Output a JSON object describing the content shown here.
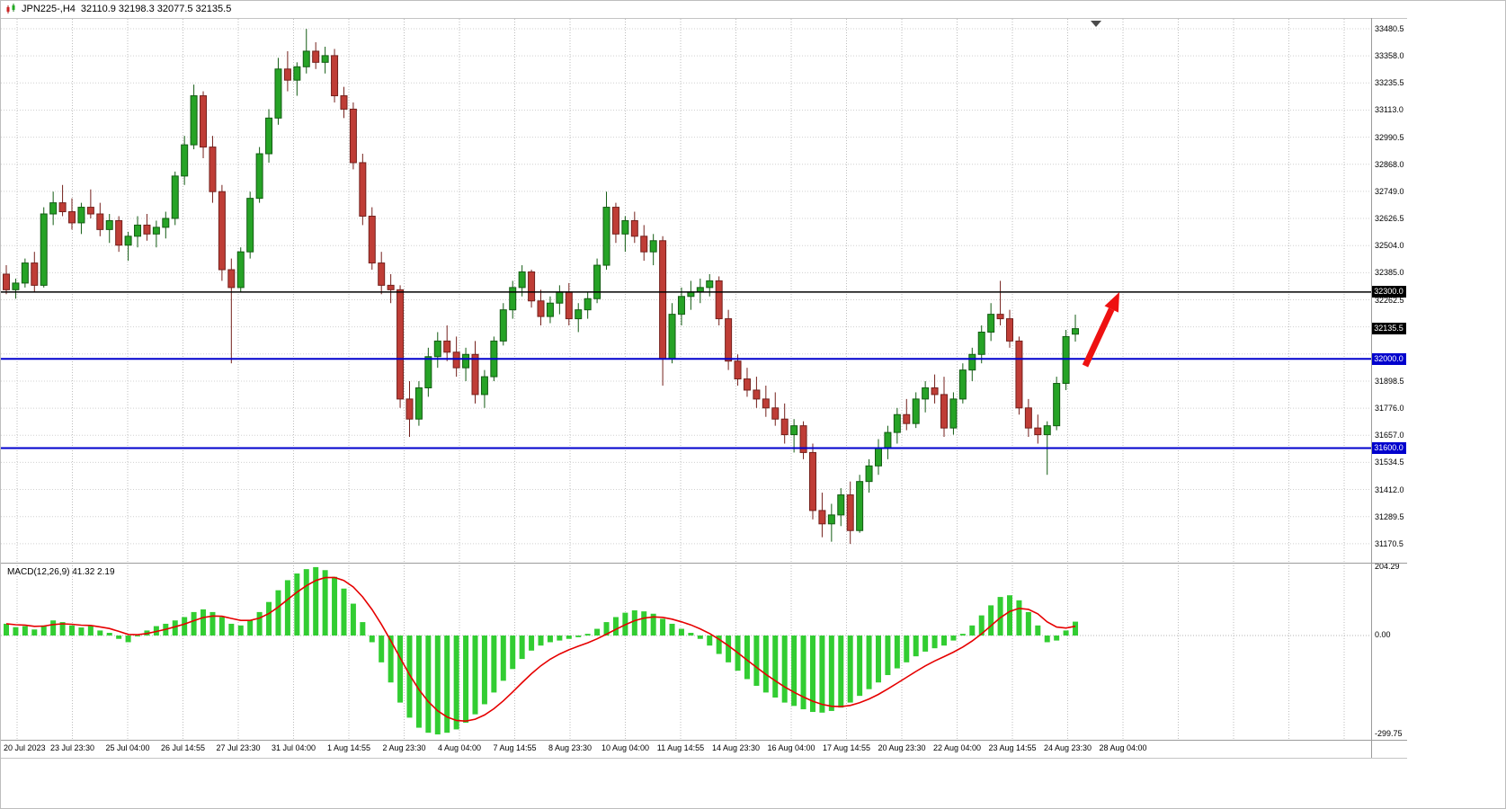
{
  "title_overlay": {
    "symbol": "JPN225-,H4",
    "ohlc": "32110.9 32198.3 32077.5 32135.5"
  },
  "price_axis_labels": [
    "33480.5",
    "33358.0",
    "33235.5",
    "33113.0",
    "32990.5",
    "32868.0",
    "32749.0",
    "32626.5",
    "32504.0",
    "32385.0",
    "32262.5",
    "32140.0",
    "32017.5",
    "31898.5",
    "31776.0",
    "31657.0",
    "31534.5",
    "31412.0",
    "31289.5",
    "31170.5"
  ],
  "price_badges": [
    {
      "label": "32300.0",
      "price": 32300.0,
      "color": "#000000"
    },
    {
      "label": "32135.5",
      "price": 32135.5,
      "color": "#000000"
    },
    {
      "label": "32000.0",
      "price": 32000.0,
      "color": "#0000cd"
    },
    {
      "label": "31600.0",
      "price": 31600.0,
      "color": "#0000cd"
    }
  ],
  "macd_panel": {
    "label": "MACD(12,26,9) 41.32 2.19",
    "axis_labels": [
      "204.29",
      "0.00",
      "-299.75"
    ]
  },
  "time_axis_labels": [
    "20 Jul 2023",
    "23 Jul 23:30",
    "25 Jul 04:00",
    "26 Jul 14:55",
    "27 Jul 23:30",
    "31 Jul 04:00",
    "1 Aug 14:55",
    "2 Aug 23:30",
    "4 Aug 04:00",
    "7 Aug 14:55",
    "8 Aug 23:30",
    "10 Aug 04:00",
    "11 Aug 14:55",
    "14 Aug 23:30",
    "16 Aug 04:00",
    "17 Aug 14:55",
    "20 Aug 23:30",
    "22 Aug 04:00",
    "23 Aug 14:55",
    "24 Aug 23:30",
    "28 Aug 04:00"
  ],
  "chart_data": {
    "type": "candlestick",
    "title": "JPN225-,H4",
    "symbol": "JPN225-",
    "timeframe": "H4",
    "last_ohlc": {
      "open": 32110.9,
      "high": 32198.3,
      "low": 32077.5,
      "close": 32135.5
    },
    "y_range": [
      31170.5,
      33480.5
    ],
    "grid": true,
    "horizontal_lines": [
      {
        "price": 32300.0,
        "color": "#000000",
        "width": 1.5
      },
      {
        "price": 32000.0,
        "color": "#0000cd",
        "width": 2
      },
      {
        "price": 31600.0,
        "color": "#0000cd",
        "width": 2
      }
    ],
    "annotation": {
      "type": "arrow-up",
      "color": "#ee1111",
      "note": "red arrow from last candles pointing up toward the 32300.0 black line"
    },
    "candles_ohlc": [
      [
        32380,
        32420,
        32290,
        32310
      ],
      [
        32310,
        32360,
        32270,
        32340
      ],
      [
        32340,
        32450,
        32320,
        32430
      ],
      [
        32430,
        32480,
        32300,
        32330
      ],
      [
        32330,
        32680,
        32320,
        32650
      ],
      [
        32650,
        32750,
        32600,
        32700
      ],
      [
        32700,
        32780,
        32640,
        32660
      ],
      [
        32660,
        32720,
        32580,
        32610
      ],
      [
        32610,
        32700,
        32560,
        32680
      ],
      [
        32680,
        32760,
        32630,
        32650
      ],
      [
        32650,
        32700,
        32550,
        32580
      ],
      [
        32580,
        32650,
        32520,
        32620
      ],
      [
        32620,
        32640,
        32480,
        32510
      ],
      [
        32510,
        32570,
        32440,
        32550
      ],
      [
        32550,
        32640,
        32500,
        32600
      ],
      [
        32600,
        32650,
        32530,
        32560
      ],
      [
        32560,
        32620,
        32500,
        32590
      ],
      [
        32590,
        32660,
        32540,
        32630
      ],
      [
        32630,
        32840,
        32600,
        32820
      ],
      [
        32820,
        33000,
        32780,
        32960
      ],
      [
        32960,
        33230,
        32940,
        33180
      ],
      [
        33180,
        33200,
        32900,
        32950
      ],
      [
        32950,
        33000,
        32700,
        32750
      ],
      [
        32750,
        32780,
        32350,
        32400
      ],
      [
        32400,
        32450,
        31980,
        32320
      ],
      [
        32320,
        32500,
        32300,
        32480
      ],
      [
        32480,
        32750,
        32450,
        32720
      ],
      [
        32720,
        32950,
        32700,
        32920
      ],
      [
        32920,
        33120,
        32880,
        33080
      ],
      [
        33080,
        33350,
        33050,
        33300
      ],
      [
        33300,
        33380,
        33200,
        33250
      ],
      [
        33250,
        33330,
        33180,
        33310
      ],
      [
        33310,
        33480,
        33280,
        33380
      ],
      [
        33380,
        33420,
        33300,
        33330
      ],
      [
        33330,
        33400,
        33280,
        33360
      ],
      [
        33360,
        33390,
        33150,
        33180
      ],
      [
        33180,
        33220,
        33080,
        33120
      ],
      [
        33120,
        33150,
        32850,
        32880
      ],
      [
        32880,
        32920,
        32600,
        32640
      ],
      [
        32640,
        32680,
        32400,
        32430
      ],
      [
        32430,
        32480,
        32290,
        32330
      ],
      [
        32330,
        32380,
        32250,
        32310
      ],
      [
        32310,
        32330,
        31780,
        31820
      ],
      [
        31820,
        31900,
        31650,
        31730
      ],
      [
        31730,
        31900,
        31700,
        31870
      ],
      [
        31870,
        32050,
        31830,
        32010
      ],
      [
        32010,
        32120,
        31960,
        32080
      ],
      [
        32080,
        32150,
        31990,
        32030
      ],
      [
        32030,
        32100,
        31920,
        31960
      ],
      [
        31960,
        32050,
        31900,
        32020
      ],
      [
        32020,
        32080,
        31800,
        31840
      ],
      [
        31840,
        31950,
        31780,
        31920
      ],
      [
        31920,
        32100,
        31900,
        32080
      ],
      [
        32080,
        32250,
        32060,
        32220
      ],
      [
        32220,
        32350,
        32180,
        32320
      ],
      [
        32320,
        32420,
        32280,
        32390
      ],
      [
        32390,
        32400,
        32230,
        32260
      ],
      [
        32260,
        32310,
        32150,
        32190
      ],
      [
        32190,
        32280,
        32160,
        32250
      ],
      [
        32250,
        32330,
        32200,
        32300
      ],
      [
        32300,
        32340,
        32150,
        32180
      ],
      [
        32180,
        32250,
        32120,
        32220
      ],
      [
        32220,
        32300,
        32180,
        32270
      ],
      [
        32270,
        32450,
        32250,
        32420
      ],
      [
        32420,
        32750,
        32400,
        32680
      ],
      [
        32680,
        32700,
        32520,
        32560
      ],
      [
        32560,
        32640,
        32480,
        32620
      ],
      [
        32620,
        32660,
        32520,
        32550
      ],
      [
        32550,
        32600,
        32440,
        32480
      ],
      [
        32480,
        32560,
        32420,
        32530
      ],
      [
        32530,
        32550,
        31880,
        32000
      ],
      [
        32000,
        32250,
        31980,
        32200
      ],
      [
        32200,
        32320,
        32150,
        32280
      ],
      [
        32280,
        32350,
        32220,
        32300
      ],
      [
        32300,
        32360,
        32250,
        32320
      ],
      [
        32320,
        32380,
        32280,
        32350
      ],
      [
        32350,
        32370,
        32150,
        32180
      ],
      [
        32180,
        32220,
        31950,
        31990
      ],
      [
        31990,
        32020,
        31880,
        31910
      ],
      [
        31910,
        31960,
        31830,
        31860
      ],
      [
        31860,
        31920,
        31780,
        31820
      ],
      [
        31820,
        31880,
        31740,
        31780
      ],
      [
        31780,
        31850,
        31700,
        31730
      ],
      [
        31730,
        31800,
        31620,
        31660
      ],
      [
        31660,
        31730,
        31580,
        31700
      ],
      [
        31700,
        31720,
        31550,
        31580
      ],
      [
        31580,
        31620,
        31280,
        31320
      ],
      [
        31320,
        31400,
        31200,
        31260
      ],
      [
        31260,
        31350,
        31180,
        31300
      ],
      [
        31300,
        31420,
        31250,
        31390
      ],
      [
        31390,
        31450,
        31170,
        31230
      ],
      [
        31230,
        31480,
        31220,
        31450
      ],
      [
        31450,
        31550,
        31400,
        31520
      ],
      [
        31520,
        31640,
        31480,
        31600
      ],
      [
        31600,
        31700,
        31550,
        31670
      ],
      [
        31670,
        31780,
        31620,
        31750
      ],
      [
        31750,
        31820,
        31680,
        31710
      ],
      [
        31710,
        31850,
        31690,
        31820
      ],
      [
        31820,
        31900,
        31760,
        31870
      ],
      [
        31870,
        31930,
        31800,
        31840
      ],
      [
        31840,
        31920,
        31650,
        31690
      ],
      [
        31690,
        31850,
        31660,
        31820
      ],
      [
        31820,
        31980,
        31800,
        31950
      ],
      [
        31950,
        32050,
        31900,
        32020
      ],
      [
        32020,
        32150,
        31980,
        32120
      ],
      [
        32120,
        32250,
        32080,
        32200
      ],
      [
        32200,
        32350,
        32150,
        32180
      ],
      [
        32180,
        32220,
        32050,
        32080
      ],
      [
        32080,
        32100,
        31750,
        31780
      ],
      [
        31780,
        31820,
        31650,
        31690
      ],
      [
        31690,
        31750,
        31620,
        31660
      ],
      [
        31660,
        31720,
        31480,
        31700
      ],
      [
        31700,
        31920,
        31680,
        31890
      ],
      [
        31890,
        32130,
        31860,
        32100
      ],
      [
        32110.9,
        32198.3,
        32077.5,
        32135.5
      ]
    ],
    "macd": {
      "params": [
        12,
        26,
        9
      ],
      "main_value": 41.32,
      "signal_value": 2.19,
      "y_range": [
        -299.75,
        204.29
      ],
      "histogram": [
        35,
        25,
        28,
        18,
        30,
        45,
        40,
        30,
        24,
        28,
        15,
        8,
        -10,
        -20,
        0,
        15,
        28,
        35,
        45,
        55,
        70,
        78,
        70,
        55,
        35,
        30,
        45,
        70,
        100,
        135,
        165,
        185,
        198,
        204,
        195,
        175,
        140,
        95,
        40,
        -20,
        -80,
        -140,
        -200,
        -245,
        -275,
        -290,
        -295,
        -290,
        -280,
        -260,
        -235,
        -205,
        -170,
        -135,
        -100,
        -70,
        -45,
        -30,
        -20,
        -15,
        -10,
        -5,
        5,
        20,
        40,
        55,
        68,
        75,
        72,
        65,
        50,
        35,
        20,
        8,
        -10,
        -30,
        -55,
        -80,
        -105,
        -130,
        -150,
        -170,
        -185,
        -200,
        -210,
        -220,
        -228,
        -230,
        -225,
        -215,
        -200,
        -180,
        -160,
        -140,
        -118,
        -98,
        -80,
        -62,
        -48,
        -38,
        -30,
        -15,
        5,
        30,
        60,
        90,
        115,
        120,
        105,
        70,
        30,
        -20,
        -15,
        15,
        41.32
      ]
    }
  },
  "colors": {
    "bull": "#26a326",
    "bull_border": "#135c13",
    "bear": "#bf3d36",
    "bear_border": "#74201c",
    "grid_v": "#bdbdbd",
    "grid_h": "#d0d0d0",
    "macd_hist": "#32cd32",
    "macd_signal": "#e60000",
    "arrow": "#ee1111",
    "badge_black": "#000000",
    "badge_blue": "#0000cd"
  }
}
